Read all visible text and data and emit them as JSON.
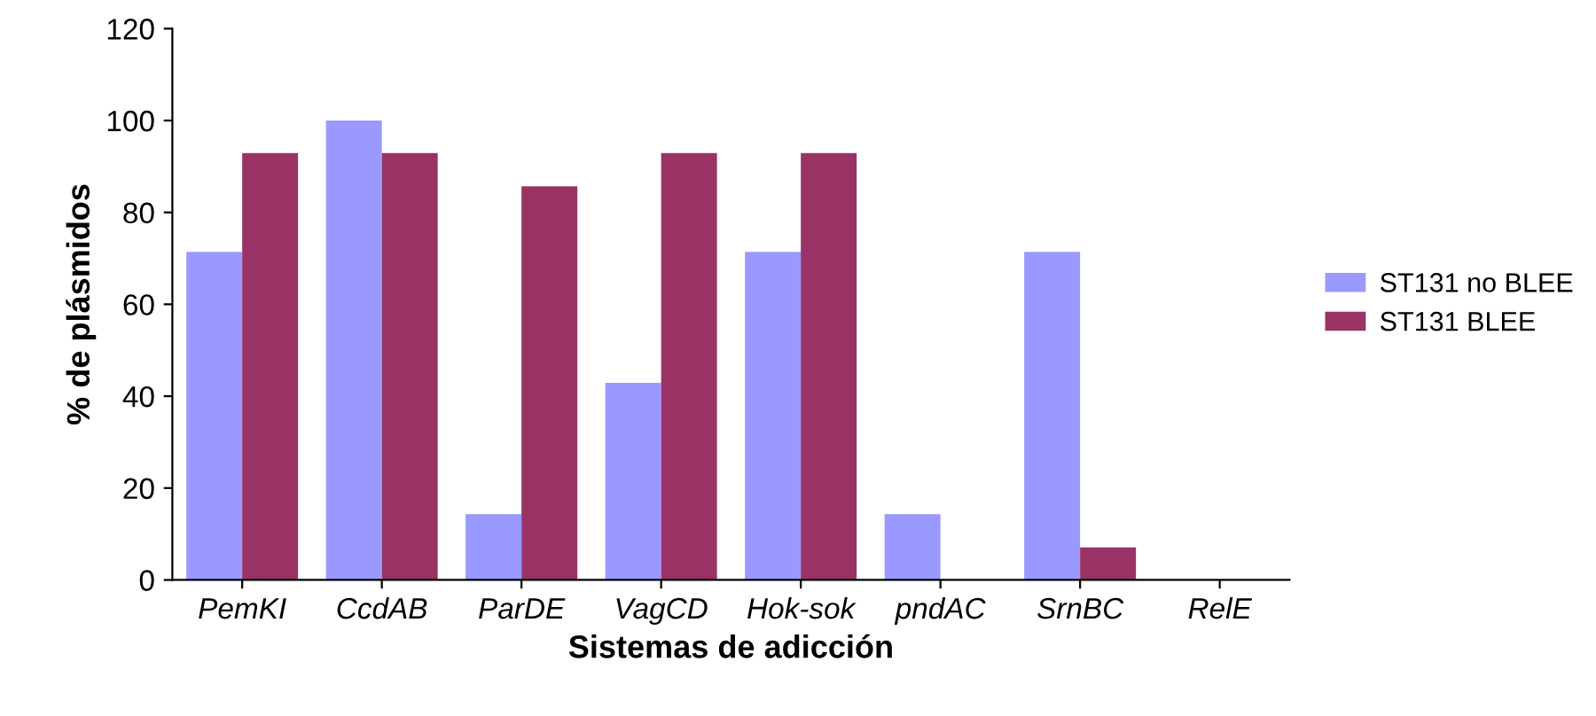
{
  "chart_data": {
    "type": "bar",
    "xlabel": "Sistemas de adicción",
    "ylabel": "% de plásmidos",
    "categories": [
      "PemKI",
      "CcdAB",
      "ParDE",
      "VagCD",
      "Hok-sok",
      "pndAC",
      "SrnBC",
      "RelE"
    ],
    "series": [
      {
        "name": "ST131 no BLEE",
        "color": "#9999ff",
        "values": [
          71.4,
          100,
          14.3,
          42.9,
          71.4,
          14.3,
          71.4,
          0
        ]
      },
      {
        "name": "ST131 BLEE",
        "color": "#993366",
        "values": [
          92.9,
          92.9,
          85.7,
          92.9,
          92.9,
          0,
          7.1,
          0
        ]
      }
    ],
    "ylim": [
      0,
      120
    ],
    "yticks": [
      0,
      20,
      40,
      60,
      80,
      100,
      120
    ],
    "grid": false,
    "legend": "right"
  }
}
